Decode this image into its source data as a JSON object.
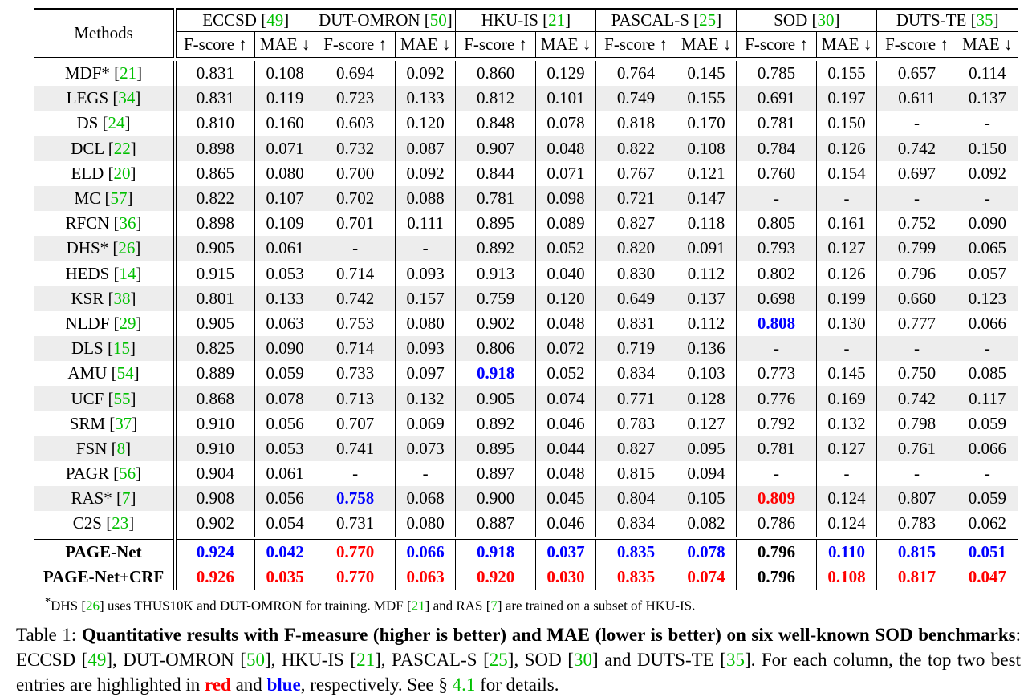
{
  "table": {
    "methods_header": "Methods",
    "datasets": [
      {
        "name": "ECCSD",
        "cite": "49"
      },
      {
        "name": "DUT-OMRON",
        "cite": "50"
      },
      {
        "name": "HKU-IS",
        "cite": "21"
      },
      {
        "name": "PASCAL-S",
        "cite": "25"
      },
      {
        "name": "SOD",
        "cite": "30"
      },
      {
        "name": "DUTS-TE",
        "cite": "35"
      }
    ],
    "metric_labels": {
      "f": "F-score ↑",
      "mae": "MAE ↓"
    },
    "rows": [
      {
        "name": "MDF*",
        "cite": "21",
        "values": [
          "0.831",
          "0.108",
          "0.694",
          "0.092",
          "0.860",
          "0.129",
          "0.764",
          "0.145",
          "0.785",
          "0.155",
          "0.657",
          "0.114"
        ],
        "hl": [
          "",
          "",
          "",
          "",
          "",
          "",
          "",
          "",
          "",
          "",
          "",
          ""
        ]
      },
      {
        "name": "LEGS",
        "cite": "34",
        "values": [
          "0.831",
          "0.119",
          "0.723",
          "0.133",
          "0.812",
          "0.101",
          "0.749",
          "0.155",
          "0.691",
          "0.197",
          "0.611",
          "0.137"
        ],
        "hl": [
          "",
          "",
          "",
          "",
          "",
          "",
          "",
          "",
          "",
          "",
          "",
          ""
        ]
      },
      {
        "name": "DS",
        "cite": "24",
        "values": [
          "0.810",
          "0.160",
          "0.603",
          "0.120",
          "0.848",
          "0.078",
          "0.818",
          "0.170",
          "0.781",
          "0.150",
          "-",
          "-"
        ],
        "hl": [
          "",
          "",
          "",
          "",
          "",
          "",
          "",
          "",
          "",
          "",
          "",
          ""
        ]
      },
      {
        "name": "DCL",
        "cite": "22",
        "values": [
          "0.898",
          "0.071",
          "0.732",
          "0.087",
          "0.907",
          "0.048",
          "0.822",
          "0.108",
          "0.784",
          "0.126",
          "0.742",
          "0.150"
        ],
        "hl": [
          "",
          "",
          "",
          "",
          "",
          "",
          "",
          "",
          "",
          "",
          "",
          ""
        ]
      },
      {
        "name": "ELD",
        "cite": "20",
        "values": [
          "0.865",
          "0.080",
          "0.700",
          "0.092",
          "0.844",
          "0.071",
          "0.767",
          "0.121",
          "0.760",
          "0.154",
          "0.697",
          "0.092"
        ],
        "hl": [
          "",
          "",
          "",
          "",
          "",
          "",
          "",
          "",
          "",
          "",
          "",
          ""
        ]
      },
      {
        "name": "MC",
        "cite": "57",
        "values": [
          "0.822",
          "0.107",
          "0.702",
          "0.088",
          "0.781",
          "0.098",
          "0.721",
          "0.147",
          "-",
          "-",
          "-",
          "-"
        ],
        "hl": [
          "",
          "",
          "",
          "",
          "",
          "",
          "",
          "",
          "",
          "",
          "",
          ""
        ]
      },
      {
        "name": "RFCN",
        "cite": "36",
        "values": [
          "0.898",
          "0.109",
          "0.701",
          "0.111",
          "0.895",
          "0.089",
          "0.827",
          "0.118",
          "0.805",
          "0.161",
          "0.752",
          "0.090"
        ],
        "hl": [
          "",
          "",
          "",
          "",
          "",
          "",
          "",
          "",
          "",
          "",
          "",
          ""
        ]
      },
      {
        "name": "DHS*",
        "cite": "26",
        "values": [
          "0.905",
          "0.061",
          "-",
          "-",
          "0.892",
          "0.052",
          "0.820",
          "0.091",
          "0.793",
          "0.127",
          "0.799",
          "0.065"
        ],
        "hl": [
          "",
          "",
          "",
          "",
          "",
          "",
          "",
          "",
          "",
          "",
          "",
          ""
        ]
      },
      {
        "name": "HEDS",
        "cite": "14",
        "values": [
          "0.915",
          "0.053",
          "0.714",
          "0.093",
          "0.913",
          "0.040",
          "0.830",
          "0.112",
          "0.802",
          "0.126",
          "0.796",
          "0.057"
        ],
        "hl": [
          "",
          "",
          "",
          "",
          "",
          "",
          "",
          "",
          "",
          "",
          "",
          ""
        ]
      },
      {
        "name": "KSR",
        "cite": "38",
        "values": [
          "0.801",
          "0.133",
          "0.742",
          "0.157",
          "0.759",
          "0.120",
          "0.649",
          "0.137",
          "0.698",
          "0.199",
          "0.660",
          "0.123"
        ],
        "hl": [
          "",
          "",
          "",
          "",
          "",
          "",
          "",
          "",
          "",
          "",
          "",
          ""
        ]
      },
      {
        "name": "NLDF",
        "cite": "29",
        "values": [
          "0.905",
          "0.063",
          "0.753",
          "0.080",
          "0.902",
          "0.048",
          "0.831",
          "0.112",
          "0.808",
          "0.130",
          "0.777",
          "0.066"
        ],
        "hl": [
          "",
          "",
          "",
          "",
          "",
          "",
          "",
          "",
          "blue",
          "",
          "",
          ""
        ]
      },
      {
        "name": "DLS",
        "cite": "15",
        "values": [
          "0.825",
          "0.090",
          "0.714",
          "0.093",
          "0.806",
          "0.072",
          "0.719",
          "0.136",
          "-",
          "-",
          "-",
          "-"
        ],
        "hl": [
          "",
          "",
          "",
          "",
          "",
          "",
          "",
          "",
          "",
          "",
          "",
          ""
        ]
      },
      {
        "name": "AMU",
        "cite": "54",
        "values": [
          "0.889",
          "0.059",
          "0.733",
          "0.097",
          "0.918",
          "0.052",
          "0.834",
          "0.103",
          "0.773",
          "0.145",
          "0.750",
          "0.085"
        ],
        "hl": [
          "",
          "",
          "",
          "",
          "blue",
          "",
          "",
          "",
          "",
          "",
          "",
          ""
        ]
      },
      {
        "name": "UCF",
        "cite": "55",
        "values": [
          "0.868",
          "0.078",
          "0.713",
          "0.132",
          "0.905",
          "0.074",
          "0.771",
          "0.128",
          "0.776",
          "0.169",
          "0.742",
          "0.117"
        ],
        "hl": [
          "",
          "",
          "",
          "",
          "",
          "",
          "",
          "",
          "",
          "",
          "",
          ""
        ]
      },
      {
        "name": "SRM",
        "cite": "37",
        "values": [
          "0.910",
          "0.056",
          "0.707",
          "0.069",
          "0.892",
          "0.046",
          "0.783",
          "0.127",
          "0.792",
          "0.132",
          "0.798",
          "0.059"
        ],
        "hl": [
          "",
          "",
          "",
          "",
          "",
          "",
          "",
          "",
          "",
          "",
          "",
          ""
        ]
      },
      {
        "name": "FSN",
        "cite": "8",
        "values": [
          "0.910",
          "0.053",
          "0.741",
          "0.073",
          "0.895",
          "0.044",
          "0.827",
          "0.095",
          "0.781",
          "0.127",
          "0.761",
          "0.066"
        ],
        "hl": [
          "",
          "",
          "",
          "",
          "",
          "",
          "",
          "",
          "",
          "",
          "",
          ""
        ]
      },
      {
        "name": "PAGR",
        "cite": "56",
        "values": [
          "0.904",
          "0.061",
          "-",
          "-",
          "0.897",
          "0.048",
          "0.815",
          "0.094",
          "-",
          "-",
          "-",
          "-"
        ],
        "hl": [
          "",
          "",
          "",
          "",
          "",
          "",
          "",
          "",
          "",
          "",
          "",
          ""
        ]
      },
      {
        "name": "RAS*",
        "cite": "7",
        "values": [
          "0.908",
          "0.056",
          "0.758",
          "0.068",
          "0.900",
          "0.045",
          "0.804",
          "0.105",
          "0.809",
          "0.124",
          "0.807",
          "0.059"
        ],
        "hl": [
          "",
          "",
          "blue",
          "",
          "",
          "",
          "",
          "",
          "red",
          "",
          "",
          ""
        ]
      },
      {
        "name": "C2S",
        "cite": "23",
        "values": [
          "0.902",
          "0.054",
          "0.731",
          "0.080",
          "0.887",
          "0.046",
          "0.834",
          "0.082",
          "0.786",
          "0.124",
          "0.783",
          "0.062"
        ],
        "hl": [
          "",
          "",
          "",
          "",
          "",
          "",
          "",
          "",
          "",
          "",
          "",
          ""
        ]
      }
    ],
    "final_rows": [
      {
        "name": "PAGE-Net",
        "values": [
          "0.924",
          "0.042",
          "0.770",
          "0.066",
          "0.918",
          "0.037",
          "0.835",
          "0.078",
          "0.796",
          "0.110",
          "0.815",
          "0.051"
        ],
        "hl": [
          "blue",
          "blue",
          "red",
          "blue",
          "blue",
          "blue",
          "blue",
          "blue",
          "",
          "blue",
          "blue",
          "blue"
        ]
      },
      {
        "name": "PAGE-Net+CRF",
        "values": [
          "0.926",
          "0.035",
          "0.770",
          "0.063",
          "0.920",
          "0.030",
          "0.835",
          "0.074",
          "0.796",
          "0.108",
          "0.817",
          "0.047"
        ],
        "hl": [
          "red",
          "red",
          "red",
          "red",
          "red",
          "red",
          "red",
          "red",
          "",
          "red",
          "red",
          "red"
        ]
      }
    ]
  },
  "footnote": {
    "star": "*",
    "p1": "DHS ",
    "c1": "26",
    "p2": " uses THUS10K and DUT-OMRON for training. MDF ",
    "c2": "21",
    "p3": " and RAS ",
    "c3": "7",
    "p4": " are trained on a subset of HKU-IS."
  },
  "caption": {
    "label": "Table 1: ",
    "bold": "Quantitative results with F-measure (higher is better) and MAE (lower is better) on six well-known SOD benchmarks",
    "after_bold": ": ECCSD ",
    "r1": "49",
    "t1": ", DUT-OMRON ",
    "r2": "50",
    "t2": ", HKU-IS ",
    "r3": "21",
    "t3": ", PASCAL-S ",
    "r4": "25",
    "t4": ", SOD ",
    "r5": "30",
    "t5": " and DUTS-TE ",
    "r6": "35",
    "t6": ". For each column, the top two best entries are highlighted in ",
    "red_word": "red",
    "and_word": " and ",
    "blue_word": "blue",
    "t7": ", respectively. See § ",
    "section": "4.1",
    "t8": " for details."
  }
}
